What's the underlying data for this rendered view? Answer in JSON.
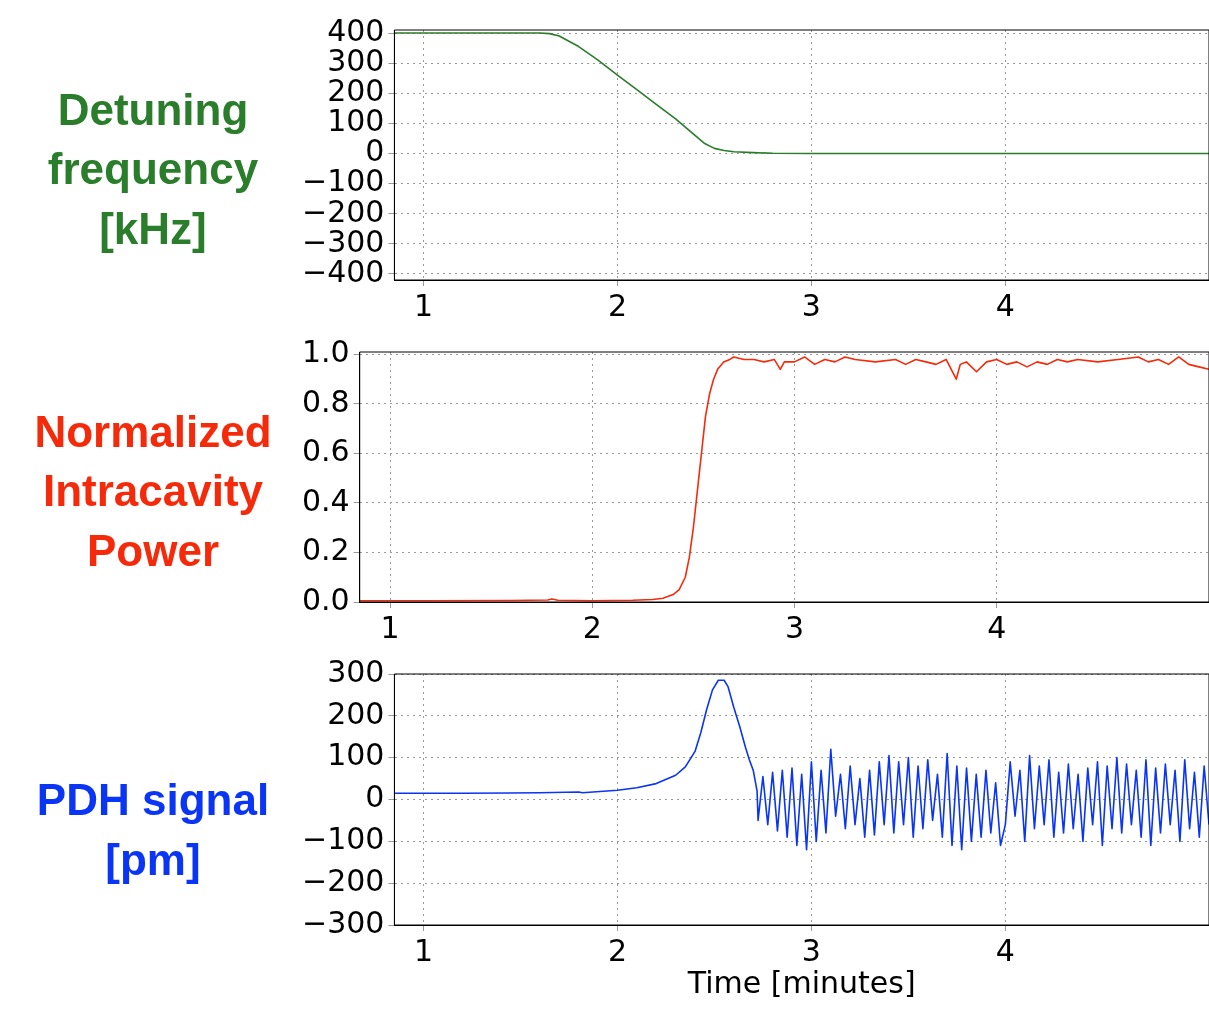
{
  "chart_data": [
    {
      "type": "line",
      "ylabel": "Detuning frequency [kHz]",
      "color": "#2a7d2a",
      "grid": true,
      "legend": false,
      "x": [
        0.85,
        1.0,
        1.2,
        1.4,
        1.6,
        1.65,
        1.7,
        1.8,
        1.9,
        2.0,
        2.1,
        2.2,
        2.3,
        2.4,
        2.45,
        2.5,
        2.55,
        2.6,
        2.7,
        2.8,
        3.0,
        3.5,
        4.0,
        4.5,
        5.05
      ],
      "values": [
        400,
        400,
        400,
        400,
        400,
        398,
        390,
        355,
        310,
        260,
        212,
        163,
        115,
        60,
        33,
        17,
        10,
        6,
        3,
        1,
        0,
        0,
        0,
        0,
        0
      ],
      "xlim": [
        0.85,
        5.05
      ],
      "xticks": [
        1,
        2,
        3,
        4
      ],
      "ylim": [
        -420,
        410
      ],
      "yticks": [
        {
          "value": -400,
          "label": "−400"
        },
        {
          "value": -300,
          "label": "−300"
        },
        {
          "value": -200,
          "label": "−200"
        },
        {
          "value": -100,
          "label": "−100"
        },
        0,
        100,
        200,
        300,
        400
      ]
    },
    {
      "type": "line",
      "ylabel": "Normalized Intracavity Power",
      "color": "#f52a0a",
      "grid": true,
      "legend": false,
      "x": [
        0.85,
        1.2,
        1.6,
        1.78,
        1.8,
        1.83,
        2.0,
        2.2,
        2.3,
        2.35,
        2.4,
        2.43,
        2.46,
        2.48,
        2.5,
        2.52,
        2.54,
        2.56,
        2.58,
        2.6,
        2.62,
        2.65,
        2.68,
        2.7,
        2.75,
        2.8,
        2.85,
        2.9,
        2.93,
        2.95,
        3.0,
        3.05,
        3.1,
        3.15,
        3.2,
        3.25,
        3.3,
        3.4,
        3.5,
        3.55,
        3.6,
        3.65,
        3.7,
        3.75,
        3.8,
        3.82,
        3.85,
        3.9,
        3.95,
        4.0,
        4.05,
        4.1,
        4.15,
        4.2,
        4.25,
        4.3,
        4.35,
        4.4,
        4.5,
        4.6,
        4.7,
        4.75,
        4.8,
        4.85,
        4.9,
        4.95,
        5.0,
        5.05
      ],
      "values": [
        0.005,
        0.005,
        0.006,
        0.008,
        0.012,
        0.007,
        0.005,
        0.007,
        0.01,
        0.015,
        0.03,
        0.05,
        0.1,
        0.18,
        0.3,
        0.45,
        0.6,
        0.75,
        0.84,
        0.9,
        0.94,
        0.97,
        0.98,
        0.99,
        0.98,
        0.98,
        0.97,
        0.98,
        0.94,
        0.97,
        0.97,
        0.99,
        0.96,
        0.98,
        0.97,
        0.99,
        0.98,
        0.97,
        0.98,
        0.96,
        0.98,
        0.97,
        0.96,
        0.98,
        0.9,
        0.96,
        0.97,
        0.93,
        0.97,
        0.98,
        0.96,
        0.97,
        0.95,
        0.97,
        0.96,
        0.98,
        0.97,
        0.98,
        0.97,
        0.98,
        0.99,
        0.97,
        0.98,
        0.96,
        0.99,
        0.96,
        0.95,
        0.94
      ],
      "xlim": [
        0.85,
        5.05
      ],
      "xticks": [
        1,
        2,
        3,
        4
      ],
      "ylim": [
        0,
        1.01
      ],
      "yticks": [
        {
          "value": 0,
          "label": "0.0"
        },
        0.2,
        0.4,
        0.6,
        0.8,
        {
          "value": 1,
          "label": "1.0"
        }
      ]
    },
    {
      "type": "line",
      "ylabel": "PDH signal [pm]",
      "xlabel": "Time [minutes]",
      "color": "#0a35f5",
      "grid": true,
      "legend": false,
      "x": [
        0.85,
        1.2,
        1.6,
        1.8,
        1.82,
        2.0,
        2.1,
        2.2,
        2.3,
        2.35,
        2.4,
        2.43,
        2.46,
        2.49,
        2.52,
        2.55,
        2.57,
        2.6,
        2.63,
        2.66,
        2.68,
        2.7,
        2.72,
        2.725,
        2.75,
        2.775,
        2.8,
        2.825,
        2.85,
        2.875,
        2.9,
        2.925,
        2.95,
        2.975,
        3.0,
        3.025,
        3.05,
        3.075,
        3.1,
        3.125,
        3.15,
        3.175,
        3.2,
        3.225,
        3.25,
        3.275,
        3.3,
        3.325,
        3.35,
        3.375,
        3.4,
        3.425,
        3.45,
        3.475,
        3.5,
        3.525,
        3.55,
        3.575,
        3.6,
        3.625,
        3.65,
        3.675,
        3.7,
        3.725,
        3.75,
        3.775,
        3.8,
        3.825,
        3.85,
        3.875,
        3.9,
        3.925,
        3.95,
        3.975,
        4.0,
        4.025,
        4.05,
        4.075,
        4.1,
        4.125,
        4.15,
        4.175,
        4.2,
        4.225,
        4.25,
        4.275,
        4.3,
        4.325,
        4.35,
        4.375,
        4.4,
        4.425,
        4.45,
        4.475,
        4.5,
        4.525,
        4.55,
        4.575,
        4.6,
        4.625,
        4.65,
        4.675,
        4.7,
        4.725,
        4.75,
        4.775,
        4.8,
        4.825,
        4.85,
        4.875,
        4.9,
        4.925,
        4.95,
        4.975,
        5.0,
        5.025,
        5.05
      ],
      "values": [
        15,
        15,
        16,
        18,
        16,
        22,
        28,
        38,
        58,
        78,
        115,
        160,
        215,
        262,
        285,
        285,
        270,
        220,
        175,
        125,
        95,
        70,
        20,
        -50,
        55,
        -60,
        65,
        -75,
        70,
        -90,
        75,
        -110,
        60,
        -120,
        90,
        -100,
        70,
        -80,
        120,
        -40,
        60,
        -70,
        80,
        -60,
        50,
        -90,
        70,
        -85,
        90,
        -60,
        105,
        -80,
        90,
        -60,
        100,
        -90,
        80,
        -70,
        95,
        -50,
        60,
        -90,
        110,
        -110,
        80,
        -120,
        75,
        -100,
        60,
        -90,
        70,
        -80,
        40,
        -110,
        -60,
        90,
        -40,
        70,
        -100,
        105,
        -70,
        80,
        -60,
        95,
        -90,
        65,
        -80,
        85,
        -70,
        60,
        -100,
        75,
        -60,
        90,
        -110,
        80,
        -70,
        100,
        -80,
        85,
        -60,
        70,
        -90,
        95,
        -110,
        75,
        -80,
        85,
        -60,
        70,
        -100,
        95,
        -70,
        65,
        -90,
        80,
        -60
      ],
      "xlim": [
        0.85,
        5.05
      ],
      "xticks": [
        1,
        2,
        3,
        4
      ],
      "ylim": [
        -300,
        300
      ],
      "yticks": [
        {
          "value": -300,
          "label": "−300"
        },
        {
          "value": -200,
          "label": "−200"
        },
        {
          "value": -100,
          "label": "−100"
        },
        0,
        100,
        200,
        300
      ]
    }
  ]
}
